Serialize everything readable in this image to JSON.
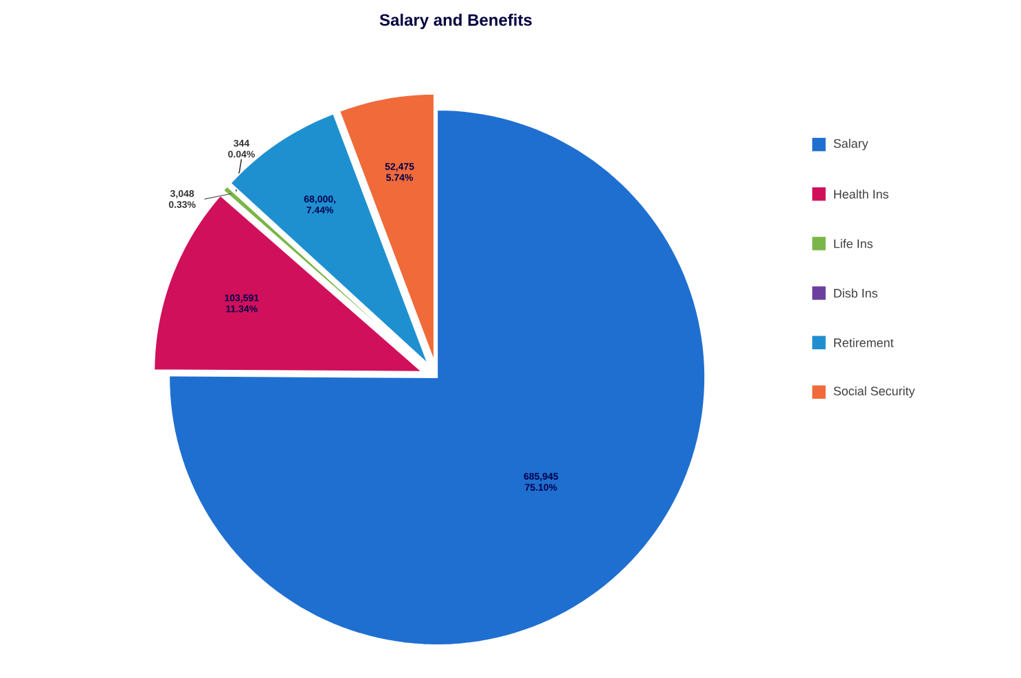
{
  "chart_data": {
    "type": "pie",
    "title": "Salary and Benefits",
    "categories": [
      "Salary",
      "Health Ins",
      "Life Ins",
      "Disb Ins",
      "Retirement",
      "Social Security"
    ],
    "values": [
      685945,
      103591,
      3048,
      344,
      68000,
      52475
    ],
    "colors": [
      "#1f6fd0",
      "#d0105a",
      "#7ab648",
      "#6a3fa0",
      "#1e90d0",
      "#f06a3a"
    ],
    "value_labels": [
      "685,945 75.10%",
      "103,591 11.34%",
      "3,048 0.33%",
      "344 0.04%",
      "68,000, 7.44%",
      "52,475 5.74%"
    ],
    "legend": "right"
  }
}
